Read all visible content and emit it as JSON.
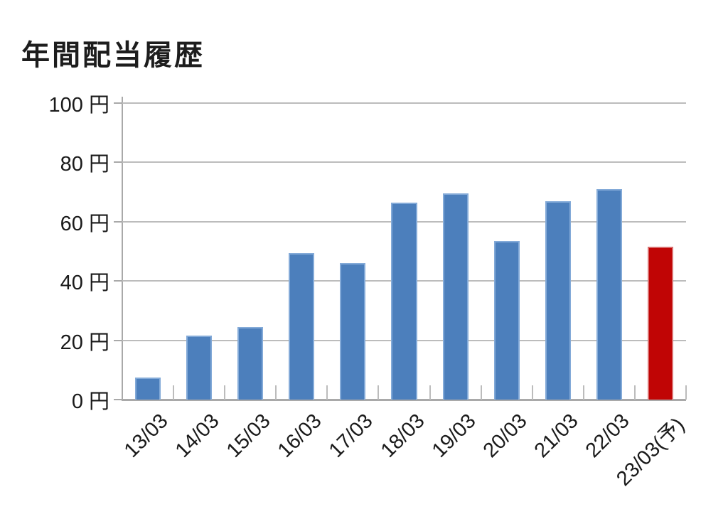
{
  "chart_data": {
    "type": "bar",
    "title": "年間配当履歴",
    "categories": [
      "13/03",
      "14/03",
      "15/03",
      "16/03",
      "17/03",
      "18/03",
      "19/03",
      "20/03",
      "21/03",
      "22/03",
      "23/03(予)"
    ],
    "values": [
      7.5,
      21.5,
      24.5,
      49.5,
      46,
      66.5,
      69.5,
      53.5,
      67,
      71,
      51.5
    ],
    "unit": "円",
    "ylim": [
      0,
      100
    ],
    "yticks": [
      0,
      20,
      40,
      60,
      80,
      100
    ],
    "ytick_labels": [
      "0 円",
      "20 円",
      "40 円",
      "60 円",
      "80 円",
      "100 円"
    ],
    "xlabel": "",
    "ylabel": "",
    "grid": true,
    "legend": false,
    "x_label_rotation_deg": -45,
    "forecast_index": 10,
    "forecast_suffix": "(予)",
    "colors": {
      "bar": "#4c7fbc",
      "bar_edge": "#83aad8",
      "forecast_bar": "#c00505",
      "forecast_bar_edge": "#d96e6e",
      "grid": "#bcbcbc",
      "axis": "#a9a9a9",
      "text": "#1c1c1c",
      "background": "#ffffff"
    }
  }
}
